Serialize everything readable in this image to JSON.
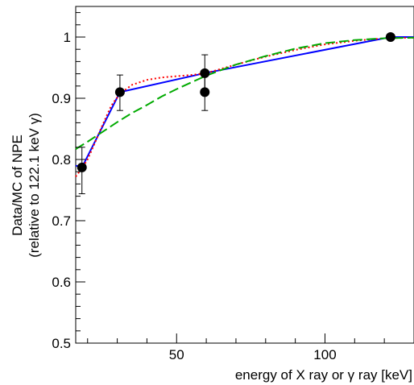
{
  "chart_data": {
    "type": "line",
    "xlabel": "energy of X ray or γ ray [keV]",
    "ylabel_line1": "Data/MC of NPE",
    "ylabel_line2": "(relative to 122.1 keV γ)",
    "xlim": [
      16,
      130
    ],
    "ylim": [
      0.5,
      1.05
    ],
    "x_ticks": [
      50,
      100
    ],
    "x_tick_labels": [
      "50",
      "100"
    ],
    "y_ticks": [
      0.5,
      0.6,
      0.7,
      0.8,
      0.9,
      1.0
    ],
    "y_tick_labels": [
      "0.5",
      "0.6",
      "0.7",
      "0.8",
      "0.9",
      "1"
    ],
    "grid": false,
    "points": [
      {
        "x": 18.1,
        "y": 0.787,
        "err_lo": 0.043,
        "err_hi": 0.033
      },
      {
        "x": 30.9,
        "y": 0.91,
        "err_lo": 0.03,
        "err_hi": 0.028
      },
      {
        "x": 59.5,
        "y": 0.941,
        "err_lo": 0.03,
        "err_hi": 0.03
      },
      {
        "x": 59.5,
        "y": 0.91,
        "err_lo": 0.03,
        "err_hi": 0.03
      },
      {
        "x": 122.1,
        "y": 1.0,
        "err_lo": 0.0,
        "err_hi": 0.0
      }
    ],
    "series": [
      {
        "style": "solid",
        "color": "#0000ff",
        "x": [
          16,
          18.1,
          30.9,
          59.5,
          122.1,
          130
        ],
        "y": [
          0.79,
          0.787,
          0.91,
          0.941,
          1.0,
          1.0
        ]
      },
      {
        "style": "dotted",
        "color": "#ff0000",
        "x": [
          16,
          18,
          20,
          22,
          25,
          28,
          31,
          35,
          40,
          45,
          50,
          55,
          60,
          70,
          80,
          90,
          100,
          110,
          120,
          130
        ],
        "y": [
          0.772,
          0.785,
          0.8,
          0.822,
          0.856,
          0.888,
          0.908,
          0.922,
          0.93,
          0.934,
          0.936,
          0.938,
          0.941,
          0.955,
          0.968,
          0.979,
          0.988,
          0.994,
          0.998,
          0.999
        ]
      },
      {
        "style": "dashed",
        "color": "#00aa00",
        "x": [
          16,
          20,
          25,
          30,
          35,
          40,
          45,
          50,
          55,
          60,
          70,
          80,
          90,
          100,
          110,
          120,
          130
        ],
        "y": [
          0.817,
          0.829,
          0.845,
          0.861,
          0.876,
          0.889,
          0.903,
          0.915,
          0.926,
          0.937,
          0.955,
          0.969,
          0.981,
          0.99,
          0.995,
          0.998,
          0.999
        ]
      }
    ]
  }
}
